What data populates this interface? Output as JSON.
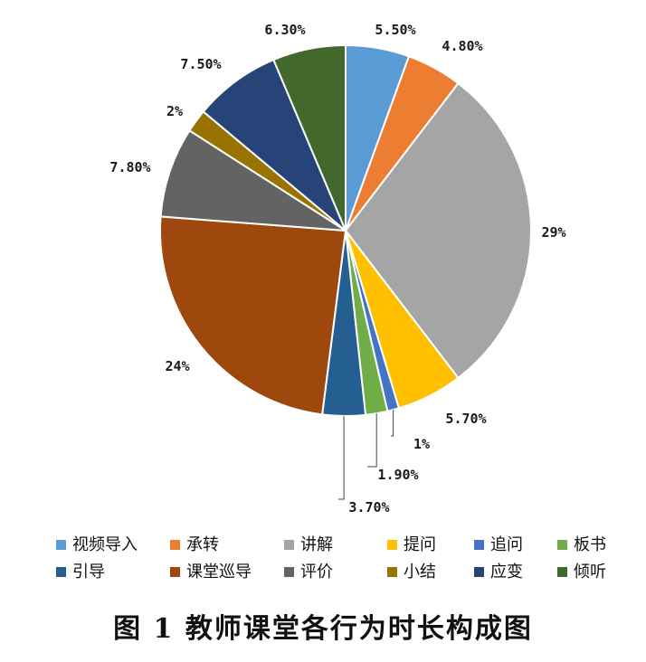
{
  "caption": "图 1    教师课堂各行为时长构成图",
  "chart_data": {
    "type": "pie",
    "slices": [
      {
        "name": "视频导入",
        "value": 5.5,
        "label": "5.50%",
        "color": "#5B9BD5"
      },
      {
        "name": "承转",
        "value": 4.8,
        "label": "4.80%",
        "color": "#ED7D31"
      },
      {
        "name": "讲解",
        "value": 29,
        "label": "29%",
        "color": "#A5A5A5"
      },
      {
        "name": "提问",
        "value": 5.7,
        "label": "5.70%",
        "color": "#FFC000"
      },
      {
        "name": "追问",
        "value": 1,
        "label": "1%",
        "color": "#4472C4"
      },
      {
        "name": "板书",
        "value": 1.9,
        "label": "1.90%",
        "color": "#70AD47"
      },
      {
        "name": "引导",
        "value": 3.7,
        "label": "3.70%",
        "color": "#255E91"
      },
      {
        "name": "课堂巡导",
        "value": 24,
        "label": "24%",
        "color": "#9E480E"
      },
      {
        "name": "评价",
        "value": 7.8,
        "label": "7.80%",
        "color": "#636363"
      },
      {
        "name": "小结",
        "value": 2,
        "label": "2%",
        "color": "#997300"
      },
      {
        "name": "应变",
        "value": 7.5,
        "label": "7.50%",
        "color": "#264478"
      },
      {
        "name": "倾听",
        "value": 6.3,
        "label": "6.30%",
        "color": "#43682B"
      }
    ],
    "legend_placement": "bottom",
    "start_angle": "12 o'clock, clockwise"
  }
}
